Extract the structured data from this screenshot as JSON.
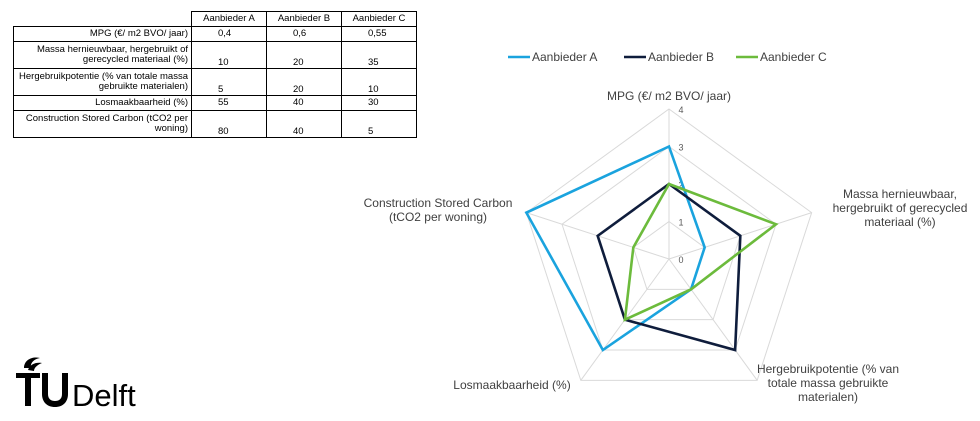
{
  "table": {
    "headers": [
      "",
      "Aanbieder A",
      "Aanbieder B",
      "Aanbieder C"
    ],
    "rows": [
      {
        "label": "MPG (€/ m2 BVO/ jaar)",
        "values": [
          "0,4",
          "0,6",
          "0,55"
        ]
      },
      {
        "label": "Massa hernieuwbaar, hergebruikt of gerecycled materiaal (%)",
        "values": [
          "10",
          "20",
          "35"
        ]
      },
      {
        "label": "Hergebruikpotentie (% van totale massa gebruikte materialen)",
        "values": [
          "5",
          "20",
          "10"
        ]
      },
      {
        "label": "Losmaakbaarheid (%)",
        "values": [
          "55",
          "40",
          "30"
        ]
      },
      {
        "label": "Construction Stored Carbon (tCO2 per woning)",
        "values": [
          "80",
          "40",
          "5"
        ]
      }
    ]
  },
  "chart_data": {
    "type": "radar",
    "axes": [
      [
        "MPG (€/ m2 BVO/ jaar)"
      ],
      [
        "Massa hernieuwbaar,",
        "hergebruikt of gerecycled",
        "materiaal  (%)"
      ],
      [
        "Hergebruikpotentie (% van",
        "totale massa gebruikte",
        "materialen)"
      ],
      [
        "Losmaakbaarheid (%)"
      ],
      [
        "Construction Stored Carbon",
        "(tCO2 per woning)"
      ]
    ],
    "rlim": [
      0,
      4
    ],
    "ticks": [
      "0",
      "1",
      "2",
      "3",
      "4"
    ],
    "grid": true,
    "legend_position": "top",
    "series": [
      {
        "name": "Aanbieder A",
        "color": "#1aa3de",
        "values": [
          3,
          1,
          1,
          3,
          4
        ]
      },
      {
        "name": "Aanbieder B",
        "color": "#0f1d3c",
        "values": [
          2,
          2,
          3,
          2,
          2
        ]
      },
      {
        "name": "Aanbieder C",
        "color": "#6cbb3c",
        "values": [
          2,
          3,
          1,
          2,
          1
        ]
      }
    ]
  },
  "logo": {
    "text": "TUDelft"
  }
}
